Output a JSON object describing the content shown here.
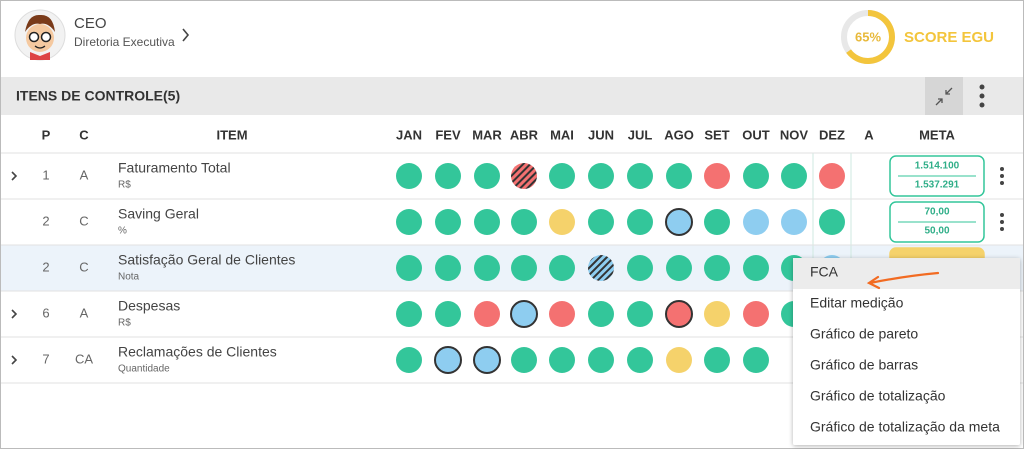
{
  "header": {
    "name": "CEO",
    "subtitle": "Diretoria Executiva",
    "score": 65,
    "score_label": "65%",
    "score_title": "SCORE EGU"
  },
  "section": {
    "title": "ITENS DE CONTROLE(5)"
  },
  "table": {
    "columns": [
      "P",
      "C",
      "ITEM",
      "JAN",
      "FEV",
      "MAR",
      "ABR",
      "MAI",
      "JUN",
      "JUL",
      "AGO",
      "SET",
      "OUT",
      "NOV",
      "DEZ",
      "A",
      "META"
    ],
    "rows": [
      {
        "p": "1",
        "c": "A",
        "item": "Faturamento Total",
        "unit": "R$",
        "expandable": true,
        "highlight": false,
        "statuses": [
          "green",
          "green",
          "green",
          "red-striped",
          "green",
          "green",
          "green",
          "green",
          "red",
          "green",
          "green",
          "red"
        ],
        "meta": [
          "1.514.100",
          "1.537.291"
        ],
        "meta_color": "green"
      },
      {
        "p": "2",
        "c": "C",
        "item": "Saving Geral",
        "unit": "%",
        "expandable": false,
        "highlight": false,
        "statuses": [
          "green",
          "green",
          "green",
          "green",
          "yellow",
          "green",
          "green",
          "blue-outlined",
          "green",
          "blue",
          "blue",
          "green"
        ],
        "meta": [
          "70,00",
          "50,00"
        ],
        "meta_color": "green"
      },
      {
        "p": "2",
        "c": "C",
        "item": "Satisfação Geral de Clientes",
        "unit": "Nota",
        "expandable": false,
        "highlight": true,
        "statuses": [
          "green",
          "green",
          "green",
          "green",
          "green",
          "blue-striped",
          "green",
          "green",
          "green",
          "green",
          "green",
          "blue"
        ],
        "meta": [],
        "meta_color": "yellow"
      },
      {
        "p": "6",
        "c": "A",
        "item": "Despesas",
        "unit": "R$",
        "expandable": true,
        "highlight": false,
        "statuses": [
          "green",
          "green",
          "red",
          "blue-outlined",
          "red",
          "green",
          "green",
          "red-outlined",
          "yellow",
          "red",
          "green"
        ],
        "meta": [],
        "meta_color": "none"
      },
      {
        "p": "7",
        "c": "CA",
        "item": "Reclamações de Clientes",
        "unit": "Quantidade",
        "expandable": true,
        "highlight": false,
        "statuses": [
          "green",
          "blue-outlined",
          "blue-outlined",
          "green",
          "green",
          "green",
          "green",
          "yellow",
          "green",
          "green"
        ],
        "meta": [],
        "meta_color": "none"
      }
    ]
  },
  "menu": {
    "items": [
      "FCA",
      "Editar medição",
      "Gráfico de pareto",
      "Gráfico de barras",
      "Gráfico de totalização",
      "Gráfico de totalização da meta"
    ]
  }
}
